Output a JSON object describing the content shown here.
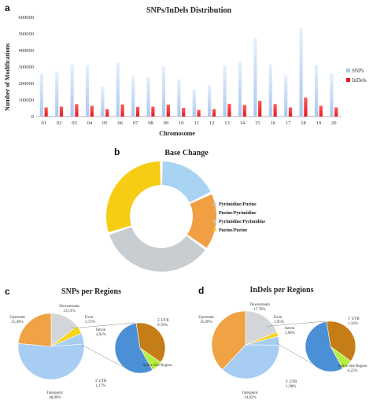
{
  "chart_data": [
    {
      "panel": "a",
      "type": "bar",
      "title": "SNPs/InDels Distribution",
      "xlabel": "Chromosome",
      "ylabel": "Number of Modifications",
      "ylim": [
        0,
        600000
      ],
      "yticks": [
        "0",
        "100000",
        "200000",
        "300000",
        "400000",
        "500000",
        "600000"
      ],
      "categories": [
        "01",
        "02",
        "03",
        "04",
        "05",
        "06",
        "07",
        "08",
        "09",
        "10",
        "11",
        "12",
        "13",
        "14",
        "15",
        "16",
        "17",
        "18",
        "19",
        "20"
      ],
      "series": [
        {
          "name": "SNPs",
          "color": "#a9c8ef",
          "values": [
            260000,
            270000,
            315000,
            310000,
            180000,
            325000,
            245000,
            240000,
            300000,
            225000,
            165000,
            190000,
            310000,
            330000,
            475000,
            315000,
            250000,
            535000,
            310000,
            260000
          ]
        },
        {
          "name": "InDels",
          "color": "#e8171b",
          "values": [
            55000,
            60000,
            75000,
            65000,
            45000,
            73000,
            58000,
            60000,
            72000,
            52000,
            40000,
            45000,
            77000,
            70000,
            95000,
            75000,
            55000,
            115000,
            65000,
            55000
          ]
        }
      ],
      "legend_position": "right"
    },
    {
      "panel": "b",
      "type": "pie",
      "title": "Base Change",
      "labels": [
        "Pyrimidine/Purine",
        "Purine/Pyrimidine",
        "Pyrimidine/Pyrimidine",
        "Purine/Purine"
      ],
      "values": [
        18,
        17,
        35,
        30
      ],
      "colors": [
        "#a9d3f3",
        "#f0a043",
        "#c8cdd2",
        "#f7cc15"
      ],
      "legend_position": "right"
    },
    {
      "panel": "c",
      "type": "pie",
      "title": "SNPs per Regions",
      "labels": [
        "Downstream 13,14%",
        "Exon 3,72%",
        "Intron 4,92%",
        "Intergenic 48,00%",
        "Upstream 21,49%"
      ],
      "values": [
        13.14,
        3.72,
        4.92,
        48.0,
        21.49
      ],
      "colors": [
        "#d3d6d8",
        "#f5d516",
        "#a8cdf2",
        "#a8cdf2",
        "#f0a245"
      ],
      "sub_pie": {
        "labels": [
          "5' UTR 0,78%",
          "Splice Site Region",
          "3' UTR 1,17%"
        ],
        "values": [
          0.78,
          0.15,
          1.17
        ],
        "colors": [
          "#c57d18",
          "#b4ef3d",
          "#4b90d6"
        ]
      }
    },
    {
      "panel": "d",
      "type": "pie",
      "title": "InDels per Regions",
      "labels": [
        "Downstream 17,78%",
        "Exon 1,95%",
        "Intron 3,98%",
        "Intergenic 34,82%",
        "Upstream 35,90%"
      ],
      "values": [
        17.78,
        1.95,
        3.98,
        34.82,
        35.9
      ],
      "colors": [
        "#d3d6d8",
        "#f5d516",
        "#a8cdf2",
        "#a8cdf2",
        "#f0a245"
      ],
      "sub_pie": {
        "labels": [
          "5' UTR 1,34%",
          "Splice Site Region 0,25%",
          "3' UTR 1,98%"
        ],
        "values": [
          1.34,
          0.25,
          1.98
        ],
        "colors": [
          "#c57d18",
          "#b4ef3d",
          "#4b90d6"
        ]
      }
    }
  ]
}
